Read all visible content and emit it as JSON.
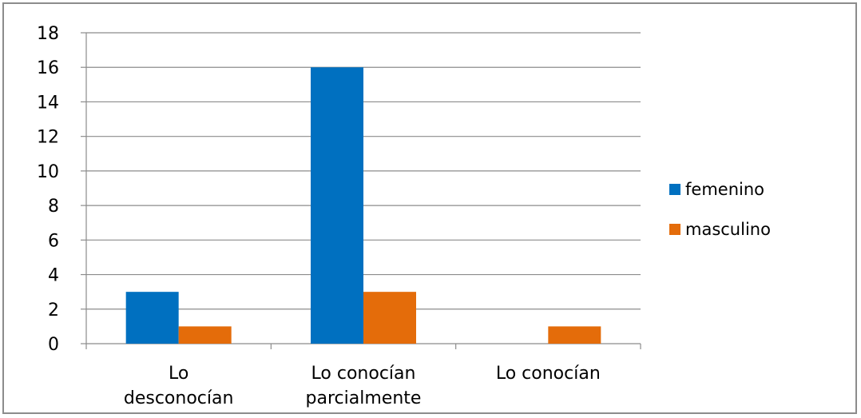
{
  "chart_data": {
    "type": "bar",
    "categories": [
      [
        "Lo",
        "desconocían"
      ],
      [
        "Lo conocían",
        "parcialmente"
      ],
      [
        "Lo conocían"
      ]
    ],
    "series": [
      {
        "name": "femenino",
        "color": "#0070c0",
        "values": [
          3,
          16,
          0
        ]
      },
      {
        "name": "masculino",
        "color": "#e46c0a",
        "values": [
          1,
          3,
          1
        ]
      }
    ],
    "ylim": [
      0,
      18
    ],
    "yticks": [
      0,
      2,
      4,
      6,
      8,
      10,
      12,
      14,
      16,
      18
    ],
    "grid": true,
    "legend_position": "right"
  }
}
